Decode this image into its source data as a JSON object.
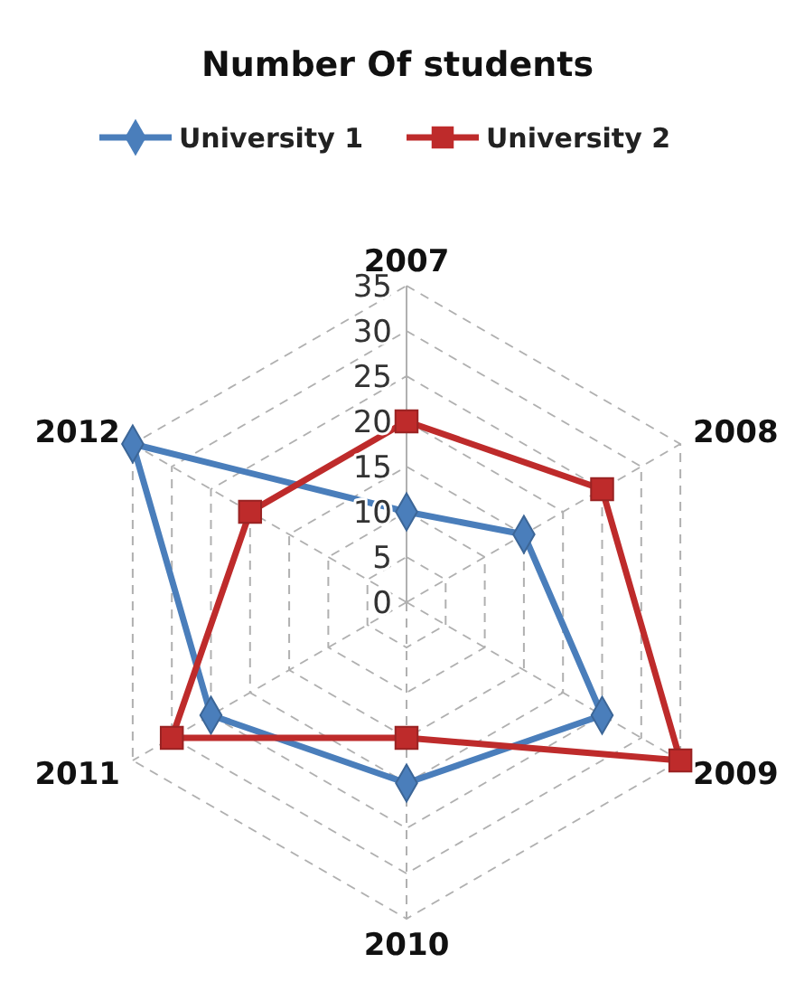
{
  "chart_data": {
    "type": "radar",
    "title": "Number Of students",
    "categories": [
      "2007",
      "2008",
      "2009",
      "2010",
      "2011",
      "2012"
    ],
    "ylim": [
      0,
      35
    ],
    "yticks": [
      0,
      5,
      10,
      15,
      20,
      25,
      30,
      35
    ],
    "grid": true,
    "legend": "top",
    "line_style": "solid",
    "series": [
      {
        "name": "University 1",
        "color": "#4a7ebb",
        "marker": "diamond",
        "values": [
          10,
          15,
          25,
          20,
          25,
          35
        ]
      },
      {
        "name": "University 2",
        "color": "#be2b2b",
        "marker": "square",
        "values": [
          20,
          25,
          35,
          15,
          30,
          20
        ]
      }
    ]
  }
}
